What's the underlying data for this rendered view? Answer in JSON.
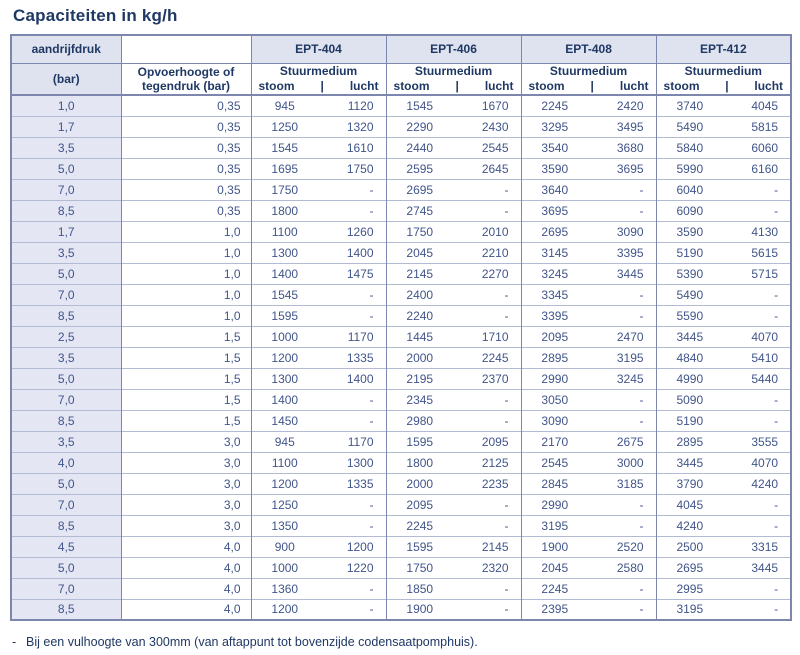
{
  "title": "Capaciteiten in kg/h",
  "colors": {
    "text_navy": "#1f3864",
    "number_text": "#41558a",
    "border_dark": "#7d87ad",
    "border_light": "#b3bad4",
    "header_fill": "#dfe2ef",
    "first_column_fill": "#e4e6f3"
  },
  "table": {
    "col1_header_line1": "aandrijfdruk",
    "col1_header_line2": "(bar)",
    "col2_header_line1": "Opvoerhoogte of",
    "col2_header_line2": "tegendruk (bar)",
    "groups": [
      "EPT-404",
      "EPT-406",
      "EPT-408",
      "EPT-412"
    ],
    "stuurmedium_label": "Stuurmedium",
    "sub_stoom": "stoom",
    "sub_sep": "|",
    "sub_lucht": "lucht",
    "rows": [
      [
        "1,0",
        "0,35",
        "945",
        "1120",
        "1545",
        "1670",
        "2245",
        "2420",
        "3740",
        "4045"
      ],
      [
        "1,7",
        "0,35",
        "1250",
        "1320",
        "2290",
        "2430",
        "3295",
        "3495",
        "5490",
        "5815"
      ],
      [
        "3,5",
        "0,35",
        "1545",
        "1610",
        "2440",
        "2545",
        "3540",
        "3680",
        "5840",
        "6060"
      ],
      [
        "5,0",
        "0,35",
        "1695",
        "1750",
        "2595",
        "2645",
        "3590",
        "3695",
        "5990",
        "6160"
      ],
      [
        "7,0",
        "0,35",
        "1750",
        "-",
        "2695",
        "-",
        "3640",
        "-",
        "6040",
        "-"
      ],
      [
        "8,5",
        "0,35",
        "1800",
        "-",
        "2745",
        "-",
        "3695",
        "-",
        "6090",
        "-"
      ],
      [
        "1,7",
        "1,0",
        "1100",
        "1260",
        "1750",
        "2010",
        "2695",
        "3090",
        "3590",
        "4130"
      ],
      [
        "3,5",
        "1,0",
        "1300",
        "1400",
        "2045",
        "2210",
        "3145",
        "3395",
        "5190",
        "5615"
      ],
      [
        "5,0",
        "1,0",
        "1400",
        "1475",
        "2145",
        "2270",
        "3245",
        "3445",
        "5390",
        "5715"
      ],
      [
        "7,0",
        "1,0",
        "1545",
        "-",
        "2400",
        "-",
        "3345",
        "-",
        "5490",
        "-"
      ],
      [
        "8,5",
        "1,0",
        "1595",
        "-",
        "2240",
        "-",
        "3395",
        "-",
        "5590",
        "-"
      ],
      [
        "2,5",
        "1,5",
        "1000",
        "1170",
        "1445",
        "1710",
        "2095",
        "2470",
        "3445",
        "4070"
      ],
      [
        "3,5",
        "1,5",
        "1200",
        "1335",
        "2000",
        "2245",
        "2895",
        "3195",
        "4840",
        "5410"
      ],
      [
        "5,0",
        "1,5",
        "1300",
        "1400",
        "2195",
        "2370",
        "2990",
        "3245",
        "4990",
        "5440"
      ],
      [
        "7,0",
        "1,5",
        "1400",
        "-",
        "2345",
        "-",
        "3050",
        "-",
        "5090",
        "-"
      ],
      [
        "8,5",
        "1,5",
        "1450",
        "-",
        "2980",
        "-",
        "3090",
        "-",
        "5190",
        "-"
      ],
      [
        "3,5",
        "3,0",
        "945",
        "1170",
        "1595",
        "2095",
        "2170",
        "2675",
        "2895",
        "3555"
      ],
      [
        "4,0",
        "3,0",
        "1100",
        "1300",
        "1800",
        "2125",
        "2545",
        "3000",
        "3445",
        "4070"
      ],
      [
        "5,0",
        "3,0",
        "1200",
        "1335",
        "2000",
        "2235",
        "2845",
        "3185",
        "3790",
        "4240"
      ],
      [
        "7,0",
        "3,0",
        "1250",
        "-",
        "2095",
        "-",
        "2990",
        "-",
        "4045",
        "-"
      ],
      [
        "8,5",
        "3,0",
        "1350",
        "-",
        "2245",
        "-",
        "3195",
        "-",
        "4240",
        "-"
      ],
      [
        "4,5",
        "4,0",
        "900",
        "1200",
        "1595",
        "2145",
        "1900",
        "2520",
        "2500",
        "3315"
      ],
      [
        "5,0",
        "4,0",
        "1000",
        "1220",
        "1750",
        "2320",
        "2045",
        "2580",
        "2695",
        "3445"
      ],
      [
        "7,0",
        "4,0",
        "1360",
        "-",
        "1850",
        "-",
        "2245",
        "-",
        "2995",
        "-"
      ],
      [
        "8,5",
        "4,0",
        "1200",
        "-",
        "1900",
        "-",
        "2395",
        "-",
        "3195",
        "-"
      ]
    ]
  },
  "footnote_dash": "-",
  "footnote_text": "Bij een vulhoogte van 300mm (van aftappunt tot bovenzijde codensaatpomphuis)."
}
